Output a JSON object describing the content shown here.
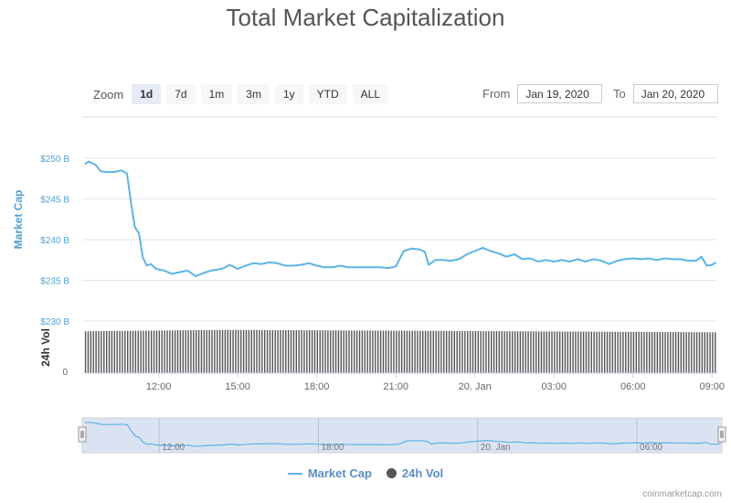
{
  "title": "Total Market Capitalization",
  "zoom": {
    "label": "Zoom",
    "buttons": [
      "1d",
      "7d",
      "1m",
      "3m",
      "1y",
      "YTD",
      "ALL"
    ],
    "active": "1d"
  },
  "range": {
    "from_label": "From",
    "from_value": "Jan 19, 2020",
    "to_label": "To",
    "to_value": "Jan 20, 2020"
  },
  "legend": {
    "market_cap": "Market Cap",
    "volume": "24h Vol"
  },
  "credit": "coinmarketcap.com",
  "colors": {
    "line": "#5ab4e8",
    "axis_text": "#4ba3d8",
    "bars": "#555555",
    "navigator_fill": "#cfd9ee"
  },
  "chart_data": {
    "type": "line",
    "y_axis_title": "Market Cap",
    "y2_axis_title": "24h Vol",
    "y_ticks": [
      "$230 B",
      "$235 B",
      "$240 B",
      "$245 B",
      "$250 B"
    ],
    "y_tick_values": [
      230,
      235,
      240,
      245,
      250
    ],
    "y2_ticks": [
      "0"
    ],
    "ylim": [
      230,
      250
    ],
    "x_ticks": [
      "12:00",
      "15:00",
      "18:00",
      "21:00",
      "20. Jan",
      "03:00",
      "06:00",
      "09:00"
    ],
    "x_tick_hours": [
      12,
      15,
      18,
      21,
      24,
      27,
      30,
      33
    ],
    "xlim_hours": [
      9.1,
      33.2
    ],
    "navigator_ticks": [
      "12:00",
      "18:00",
      "20. Jan",
      "06:00"
    ],
    "navigator_tick_hours": [
      12,
      18,
      24,
      30
    ],
    "grid": true,
    "series": [
      {
        "name": "Market Cap",
        "unit": "B USD",
        "points": [
          [
            9.2,
            249.3
          ],
          [
            9.35,
            249.6
          ],
          [
            9.6,
            249.2
          ],
          [
            9.8,
            248.4
          ],
          [
            10.0,
            248.3
          ],
          [
            10.3,
            248.3
          ],
          [
            10.6,
            248.5
          ],
          [
            10.8,
            248.1
          ],
          [
            10.95,
            244.5
          ],
          [
            11.1,
            241.5
          ],
          [
            11.25,
            240.8
          ],
          [
            11.4,
            237.8
          ],
          [
            11.55,
            236.8
          ],
          [
            11.7,
            237.0
          ],
          [
            11.9,
            236.4
          ],
          [
            12.2,
            236.2
          ],
          [
            12.5,
            235.8
          ],
          [
            12.8,
            236.0
          ],
          [
            13.1,
            236.2
          ],
          [
            13.4,
            235.5
          ],
          [
            13.7,
            235.9
          ],
          [
            14.0,
            236.2
          ],
          [
            14.4,
            236.4
          ],
          [
            14.7,
            236.9
          ],
          [
            15.0,
            236.4
          ],
          [
            15.3,
            236.8
          ],
          [
            15.6,
            237.1
          ],
          [
            15.9,
            237.0
          ],
          [
            16.2,
            237.2
          ],
          [
            16.5,
            237.1
          ],
          [
            16.8,
            236.8
          ],
          [
            17.1,
            236.8
          ],
          [
            17.4,
            236.9
          ],
          [
            17.7,
            237.1
          ],
          [
            18.0,
            236.8
          ],
          [
            18.3,
            236.6
          ],
          [
            18.6,
            236.6
          ],
          [
            18.9,
            236.8
          ],
          [
            19.2,
            236.6
          ],
          [
            19.5,
            236.6
          ],
          [
            19.8,
            236.6
          ],
          [
            20.1,
            236.6
          ],
          [
            20.4,
            236.6
          ],
          [
            20.7,
            236.5
          ],
          [
            21.0,
            236.7
          ],
          [
            21.3,
            238.6
          ],
          [
            21.6,
            238.9
          ],
          [
            21.9,
            238.8
          ],
          [
            22.1,
            238.5
          ],
          [
            22.25,
            236.9
          ],
          [
            22.5,
            237.5
          ],
          [
            22.8,
            237.5
          ],
          [
            23.1,
            237.4
          ],
          [
            23.4,
            237.6
          ],
          [
            23.7,
            238.2
          ],
          [
            24.0,
            238.6
          ],
          [
            24.3,
            239.0
          ],
          [
            24.6,
            238.6
          ],
          [
            24.9,
            238.3
          ],
          [
            25.2,
            237.9
          ],
          [
            25.5,
            238.2
          ],
          [
            25.8,
            237.6
          ],
          [
            26.1,
            237.7
          ],
          [
            26.4,
            237.3
          ],
          [
            26.7,
            237.5
          ],
          [
            27.0,
            237.3
          ],
          [
            27.3,
            237.5
          ],
          [
            27.6,
            237.3
          ],
          [
            27.9,
            237.6
          ],
          [
            28.2,
            237.3
          ],
          [
            28.5,
            237.6
          ],
          [
            28.8,
            237.4
          ],
          [
            29.1,
            237.0
          ],
          [
            29.4,
            237.4
          ],
          [
            29.7,
            237.6
          ],
          [
            30.0,
            237.7
          ],
          [
            30.3,
            237.6
          ],
          [
            30.6,
            237.7
          ],
          [
            30.9,
            237.5
          ],
          [
            31.2,
            237.7
          ],
          [
            31.5,
            237.6
          ],
          [
            31.8,
            237.6
          ],
          [
            32.1,
            237.4
          ],
          [
            32.4,
            237.4
          ],
          [
            32.6,
            237.9
          ],
          [
            32.8,
            236.8
          ],
          [
            33.0,
            236.9
          ],
          [
            33.15,
            237.2
          ]
        ]
      },
      {
        "name": "24h Vol",
        "unit": "relative",
        "start_hour": 9.2,
        "end_hour": 33.1,
        "bar_count": 240,
        "level_start": 0.86,
        "level_mid": 0.89,
        "level_end": 0.84
      }
    ]
  }
}
